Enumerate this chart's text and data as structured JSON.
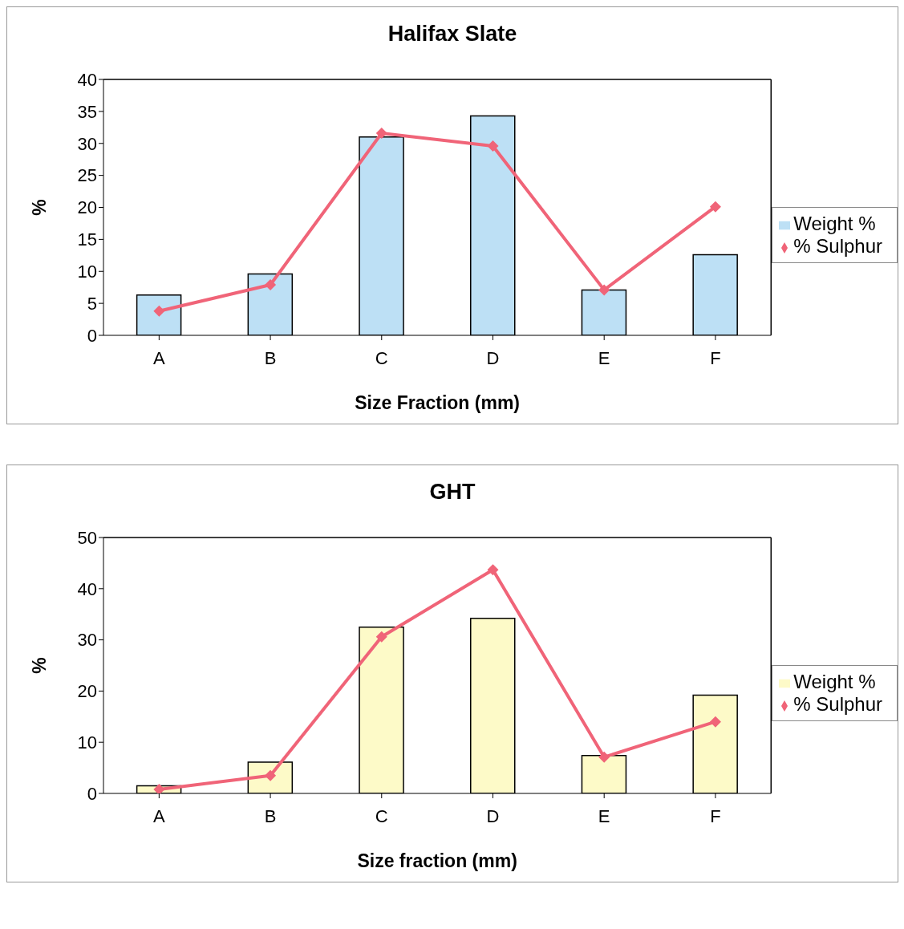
{
  "chart_data": [
    {
      "type": "bar",
      "title": "Halifax Slate",
      "xlabel": "Size Fraction (mm)",
      "ylabel": "%",
      "categories": [
        "A",
        "B",
        "C",
        "D",
        "E",
        "F"
      ],
      "series": [
        {
          "name": "Weight %",
          "color": "#bde0f5",
          "values": [
            6.3,
            9.6,
            31,
            34.3,
            7.1,
            12.6
          ]
        },
        {
          "name": "% Sulphur",
          "type": "line",
          "color": "#f06478",
          "values": [
            3.8,
            7.9,
            31.6,
            29.6,
            7.1,
            20.1
          ]
        }
      ],
      "ylim": [
        0,
        40
      ],
      "yticks": [
        0,
        5,
        10,
        15,
        20,
        25,
        30,
        35,
        40
      ],
      "grid": false,
      "legend": "right",
      "marker": "diamond",
      "line_style": "solid"
    },
    {
      "type": "bar",
      "title": "GHT",
      "xlabel": "Size fraction (mm)",
      "ylabel": "%",
      "categories": [
        "A",
        "B",
        "C",
        "D",
        "E",
        "F"
      ],
      "series": [
        {
          "name": "Weight %",
          "color": "#fdfac8",
          "values": [
            1.5,
            6.1,
            32.5,
            34.2,
            7.4,
            19.2
          ]
        },
        {
          "name": "% Sulphur",
          "type": "line",
          "color": "#f06478",
          "values": [
            0.8,
            3.5,
            30.6,
            43.7,
            7.1,
            14.0
          ]
        }
      ],
      "ylim": [
        0,
        50
      ],
      "yticks": [
        0,
        10,
        20,
        30,
        40,
        50
      ],
      "grid": false,
      "legend": "right",
      "marker": "diamond",
      "line_style": "solid"
    }
  ]
}
